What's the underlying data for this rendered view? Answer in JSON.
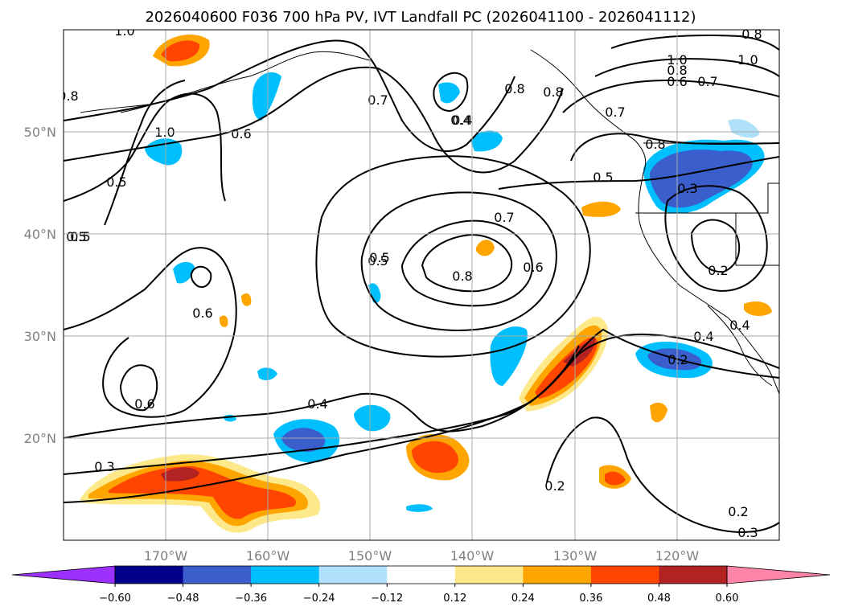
{
  "chart_data": {
    "type": "contour_map",
    "title": "2026040600 F036 700 hPa PV, IVT Landfall PC (2026041100 - 2026041112)",
    "map": {
      "lon_range": [
        -180,
        -110
      ],
      "lat_range": [
        10,
        60
      ],
      "lon_ticks": [
        -170,
        -160,
        -150,
        -140,
        -130,
        -120
      ],
      "lon_tick_labels": [
        "170°W",
        "160°W",
        "150°W",
        "140°W",
        "130°W",
        "120°W"
      ],
      "lat_ticks": [
        20,
        30,
        40,
        50
      ],
      "lat_tick_labels": [
        "20°N",
        "30°N",
        "40°N",
        "50°N"
      ],
      "grid": true
    },
    "contour_labels": [
      "1.0",
      "0.8",
      "0.7",
      "0.4",
      "0.6",
      "1.0",
      "0.5",
      "0.5",
      "0.7",
      "0.5",
      "0.8",
      "0.6",
      "0.6",
      "0.6",
      "0.4",
      "0.3",
      "0.2",
      "0.2",
      "0.3",
      "1.0",
      "0.8",
      "0.6",
      "0.7",
      "0.8",
      "0.7",
      "0.4",
      "0.5",
      "0.3",
      "0.2",
      "0.4",
      "0.4",
      "0.2",
      "0.8",
      "0.8",
      "1.0",
      "0.8",
      "0.5",
      "0.5"
    ],
    "colorbar": {
      "levels": [
        -0.6,
        -0.48,
        -0.36,
        -0.24,
        -0.12,
        0.12,
        0.24,
        0.36,
        0.48,
        0.6
      ],
      "tick_labels": [
        "−0.60",
        "−0.48",
        "−0.36",
        "−0.24",
        "−0.12",
        "0.12",
        "0.24",
        "0.36",
        "0.48",
        "0.60"
      ],
      "colors": [
        "#9b30ff",
        "#00008b",
        "#3a5fcd",
        "#00bfff",
        "#afe1fa",
        "#ffffff",
        "#fde98a",
        "#ffa500",
        "#ff4500",
        "#b22222",
        "#ff85a8"
      ],
      "extend": "both"
    }
  }
}
